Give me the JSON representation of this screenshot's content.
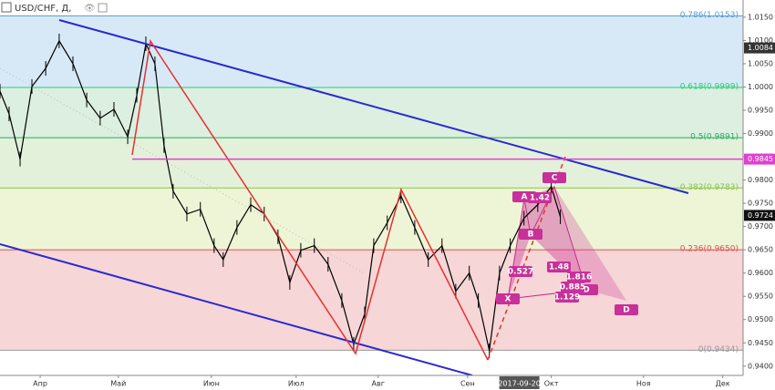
{
  "chart_data": {
    "type": "line",
    "title": "USD/CHF, Д,",
    "xlim": [
      0,
      270
    ],
    "xticks": [
      {
        "value": 14.6,
        "label": "Апр"
      },
      {
        "value": 43,
        "label": "Май"
      },
      {
        "value": 76.8,
        "label": "Июн"
      },
      {
        "value": 107.6,
        "label": "Июл"
      },
      {
        "value": 137.4,
        "label": "Авг"
      },
      {
        "value": 169.9,
        "label": "Сен"
      },
      {
        "value": 200.3,
        "label": "Окт"
      },
      {
        "value": 233.8,
        "label": "Ноя"
      },
      {
        "value": 262.6,
        "label": "Дек"
      }
    ],
    "date_marker": {
      "value": 188.7,
      "label": "2017-09-20"
    },
    "ylim": [
      0.938,
      1.0187
    ],
    "yticks": [
      {
        "value": 0.94,
        "label": "0.9400"
      },
      {
        "value": 0.945,
        "label": "0.9450"
      },
      {
        "value": 0.95,
        "label": "0.9500"
      },
      {
        "value": 0.955,
        "label": "0.9550"
      },
      {
        "value": 0.96,
        "label": "0.9600"
      },
      {
        "value": 0.965,
        "label": "0.9650"
      },
      {
        "value": 0.97,
        "label": "0.9700"
      },
      {
        "value": 0.975,
        "label": "0.9750"
      },
      {
        "value": 0.98,
        "label": "0.9800"
      },
      {
        "value": 0.985,
        "label": "0.9850"
      },
      {
        "value": 0.99,
        "label": "0.9900"
      },
      {
        "value": 0.995,
        "label": "0.9950"
      },
      {
        "value": 1.0,
        "label": "1.0000"
      },
      {
        "value": 1.005,
        "label": "1.0050"
      },
      {
        "value": 1.01,
        "label": "1.0100"
      },
      {
        "value": 1.015,
        "label": "1.0150"
      }
    ],
    "series": [
      {
        "color": "#000000",
        "x": [
          0,
          3.3,
          7.3,
          11.6,
          16.6,
          21.5,
          26.5,
          31.5,
          36.4,
          41.4,
          46.4,
          49.7,
          53,
          56.3,
          59.6,
          62.9,
          67.9,
          72.8,
          77.8,
          81.1,
          86.1,
          91.1,
          96,
          101,
          105.3,
          109.3,
          114.2,
          119.2,
          124.2,
          128.5,
          132.5,
          135.8,
          140.7,
          145.7,
          150.7,
          155.6,
          160.6,
          165.6,
          170.5,
          173.8,
          177.8,
          181.5,
          185.4,
          190.4,
          195.4,
          200.3,
          203.6
        ],
        "values": [
          0.9991,
          0.9942,
          0.9845,
          1.0001,
          1.004,
          1.0099,
          1.005,
          0.9972,
          0.9933,
          0.9952,
          0.9893,
          0.9982,
          1.0093,
          1.005,
          0.9874,
          0.9776,
          0.9727,
          0.9737,
          0.9659,
          0.9629,
          0.9698,
          0.9747,
          0.9727,
          0.9678,
          0.958,
          0.9649,
          0.9659,
          0.9619,
          0.9541,
          0.9447,
          0.9512,
          0.9659,
          0.9708,
          0.9766,
          0.9698,
          0.9629,
          0.9659,
          0.9561,
          0.96,
          0.9541,
          0.9433,
          0.96,
          0.9659,
          0.9718,
          0.9747,
          0.9786,
          0.9721
        ]
      }
    ],
    "fib_levels": [
      {
        "value": 1.0153,
        "label": "0.786(1.0153)",
        "color": "#5b9bd5"
      },
      {
        "value": 0.9999,
        "label": "0.618(0.9999)",
        "color": "#2ecc71"
      },
      {
        "value": 0.9891,
        "label": "0.5(0.9891)",
        "color": "#27ae60"
      },
      {
        "value": 0.9783,
        "label": "0.382(0.9783)",
        "color": "#8bc34a"
      },
      {
        "value": 0.965,
        "label": "0.236(0.9650)",
        "color": "#e05050"
      },
      {
        "value": 0.9434,
        "label": "0(0.9434)",
        "color": "#999999"
      }
    ],
    "price_tags": [
      {
        "value": 1.0084,
        "label": "1.0084",
        "color": "#333333"
      },
      {
        "value": 0.9845,
        "label": "0.9845",
        "color": "#e040d0"
      },
      {
        "value": 0.9724,
        "label": "0.9724",
        "color": "#111111"
      }
    ],
    "pattern_labels": [
      "A",
      "1.42",
      "B",
      "C",
      "0.527",
      "1.48",
      "1.816",
      "D",
      "0.885",
      "1.129",
      "X",
      "D"
    ]
  }
}
